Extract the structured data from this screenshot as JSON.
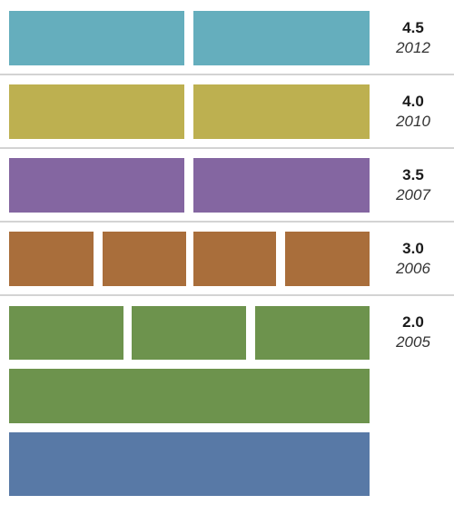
{
  "colors": {
    "teal": "#65aebd",
    "olive": "#bdb050",
    "purple": "#8466a1",
    "brown": "#a96e3b",
    "green": "#6d934d",
    "blue": "#5879a6",
    "separator": "#d3d3d3"
  },
  "releases": [
    {
      "version": "4.5",
      "year": "2012",
      "color_key": "teal",
      "blocks": 2
    },
    {
      "version": "4.0",
      "year": "2010",
      "color_key": "olive",
      "blocks": 2
    },
    {
      "version": "3.5",
      "year": "2007",
      "color_key": "purple",
      "blocks": 2
    },
    {
      "version": "3.0",
      "year": "2006",
      "color_key": "brown",
      "blocks": 4
    },
    {
      "version": "2.0",
      "year": "2005",
      "color_key": "green",
      "blocks": 3
    }
  ],
  "base_layers": [
    {
      "color_key": "green"
    },
    {
      "color_key": "blue"
    }
  ]
}
